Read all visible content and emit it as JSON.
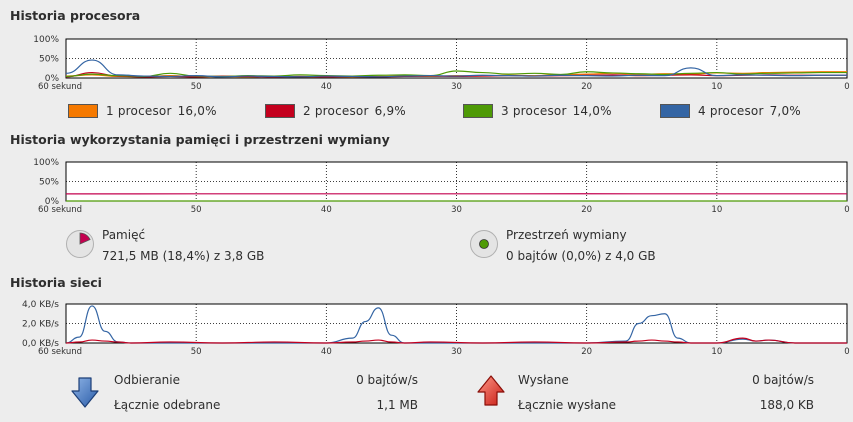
{
  "cpu": {
    "title": "Historia procesora",
    "y_ticks": [
      "100%",
      "50%",
      "0%"
    ],
    "x_ticks": [
      "60 sekund",
      "50",
      "40",
      "30",
      "20",
      "10",
      "0"
    ],
    "legend": [
      {
        "label": "1 procesor",
        "value": "16,0%",
        "color": "#f57900"
      },
      {
        "label": "2 procesor",
        "value": "6,9%",
        "color": "#c4001e"
      },
      {
        "label": "3 procesor",
        "value": "14,0%",
        "color": "#4e9a06"
      },
      {
        "label": "4 procesor",
        "value": "7,0%",
        "color": "#3465a4"
      }
    ]
  },
  "memory": {
    "title": "Historia wykorzystania pamięci i przestrzeni wymiany",
    "y_ticks": [
      "100%",
      "50%",
      "0%"
    ],
    "x_ticks": [
      "60 sekund",
      "50",
      "40",
      "30",
      "20",
      "10",
      "0"
    ],
    "memory_label": "Pamięć",
    "memory_value": "721,5 MB (18,4%) z 3,8 GB",
    "memory_fraction": 0.184,
    "memory_color": "#c4004f",
    "swap_label": "Przestrzeń wymiany",
    "swap_value": "0 bajtów (0,0%) z 4,0 GB",
    "swap_fraction": 0.0,
    "swap_color": "#4e9a06"
  },
  "network": {
    "title": "Historia sieci",
    "y_ticks": [
      "4,0 KB/s",
      "2,0 KB/s",
      "0,0 KB/s"
    ],
    "x_ticks": [
      "60 sekund",
      "50",
      "40",
      "30",
      "20",
      "10",
      "0"
    ],
    "recv_label": "Odbieranie",
    "recv_value": "0 bajtów/s",
    "recv_total_label": "Łącznie odebrane",
    "recv_total_value": "1,1 MB",
    "sent_label": "Wysłane",
    "sent_value": "0 bajtów/s",
    "sent_total_label": "Łącznie wysłane",
    "sent_total_value": "188,0 KB",
    "recv_color": "#3465a4",
    "sent_color": "#c4001e"
  },
  "chart_data": [
    {
      "type": "line",
      "title": "Historia procesora",
      "x": [
        60,
        58,
        56,
        54,
        52,
        50,
        48,
        46,
        44,
        42,
        40,
        38,
        36,
        34,
        32,
        30,
        28,
        26,
        24,
        22,
        20,
        18,
        16,
        14,
        12,
        10,
        8,
        6,
        4,
        2,
        0
      ],
      "ylim": [
        0,
        100
      ],
      "series": [
        {
          "name": "1 procesor",
          "values": [
            5,
            8,
            4,
            3,
            6,
            3,
            4,
            3,
            5,
            3,
            4,
            3,
            4,
            5,
            4,
            6,
            5,
            7,
            6,
            8,
            10,
            12,
            9,
            11,
            10,
            13,
            12,
            14,
            15,
            16,
            16
          ]
        },
        {
          "name": "2 procesor",
          "values": [
            3,
            14,
            5,
            3,
            4,
            3,
            5,
            4,
            3,
            4,
            3,
            4,
            3,
            4,
            5,
            4,
            5,
            6,
            5,
            6,
            7,
            8,
            6,
            7,
            8,
            6,
            7,
            8,
            7,
            7,
            7
          ]
        },
        {
          "name": "3 procesor",
          "values": [
            4,
            10,
            6,
            4,
            12,
            5,
            4,
            6,
            5,
            8,
            6,
            5,
            7,
            8,
            6,
            18,
            14,
            10,
            12,
            9,
            16,
            13,
            11,
            9,
            12,
            14,
            10,
            12,
            13,
            14,
            14
          ]
        },
        {
          "name": "4 procesor",
          "values": [
            12,
            46,
            8,
            5,
            4,
            6,
            3,
            5,
            4,
            3,
            5,
            4,
            3,
            5,
            6,
            5,
            7,
            6,
            5,
            7,
            6,
            5,
            7,
            6,
            26,
            6,
            8,
            7,
            6,
            7,
            7
          ]
        }
      ]
    },
    {
      "type": "line",
      "title": "Historia wykorzystania pamięci i przestrzeni wymiany",
      "x": [
        60,
        50,
        40,
        30,
        20,
        10,
        0
      ],
      "ylim": [
        0,
        100
      ],
      "series": [
        {
          "name": "Pamięć",
          "values": [
            18.3,
            18.4,
            18.4,
            18.4,
            18.5,
            18.4,
            18.4
          ]
        },
        {
          "name": "Przestrzeń wymiany",
          "values": [
            0,
            0,
            0,
            0,
            0,
            0,
            0
          ]
        }
      ]
    },
    {
      "type": "line",
      "title": "Historia sieci",
      "x": [
        60,
        59,
        58,
        57,
        56,
        55,
        52,
        48,
        44,
        40,
        38,
        37,
        36,
        35,
        34,
        32,
        28,
        24,
        20,
        17,
        16,
        15,
        14,
        13,
        12,
        10,
        8,
        7,
        6,
        4,
        0
      ],
      "ylim": [
        0,
        4.0
      ],
      "series": [
        {
          "name": "Odbieranie",
          "values": [
            0,
            0.6,
            3.8,
            1.2,
            0.1,
            0,
            0,
            0,
            0,
            0,
            0.5,
            2.2,
            3.6,
            0.8,
            0,
            0,
            0,
            0,
            0,
            0.2,
            2.0,
            2.8,
            3.0,
            0.5,
            0,
            0,
            0.4,
            0.2,
            0.3,
            0,
            0
          ]
        },
        {
          "name": "Wysłane",
          "values": [
            0,
            0.1,
            0.3,
            0.2,
            0.1,
            0,
            0.1,
            0,
            0.1,
            0,
            0.1,
            0.2,
            0.3,
            0.1,
            0,
            0.1,
            0,
            0.1,
            0,
            0.1,
            0.2,
            0.3,
            0.2,
            0.1,
            0,
            0,
            0.5,
            0.2,
            0.3,
            0,
            0
          ]
        }
      ]
    }
  ]
}
